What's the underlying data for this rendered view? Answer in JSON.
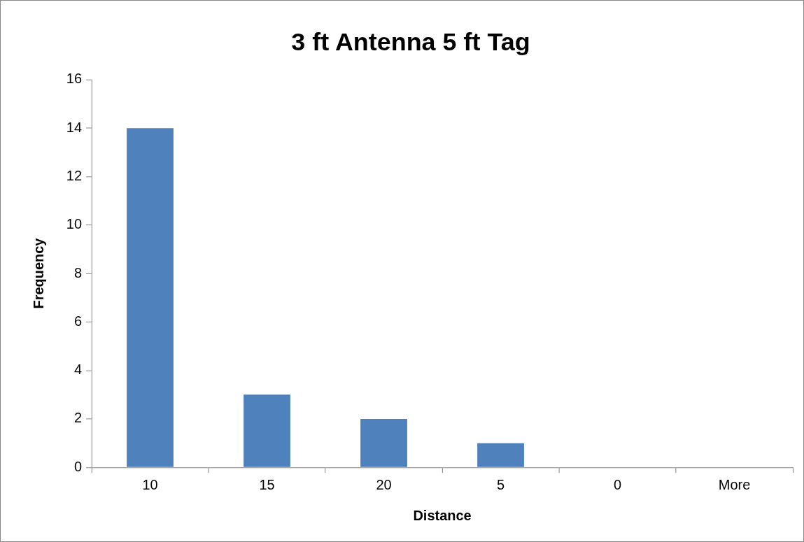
{
  "chart_data": {
    "type": "bar",
    "title": "3 ft Antenna 5 ft Tag",
    "xlabel": "Distance",
    "ylabel": "Frequency",
    "categories": [
      "10",
      "15",
      "20",
      "5",
      "0",
      "More"
    ],
    "values": [
      14,
      3,
      2,
      1,
      0,
      0
    ],
    "color": "#4f81bd",
    "ylim": [
      0,
      16
    ],
    "yticks": [
      0,
      2,
      4,
      6,
      8,
      10,
      12,
      14,
      16
    ],
    "grid": false,
    "legend": false
  }
}
